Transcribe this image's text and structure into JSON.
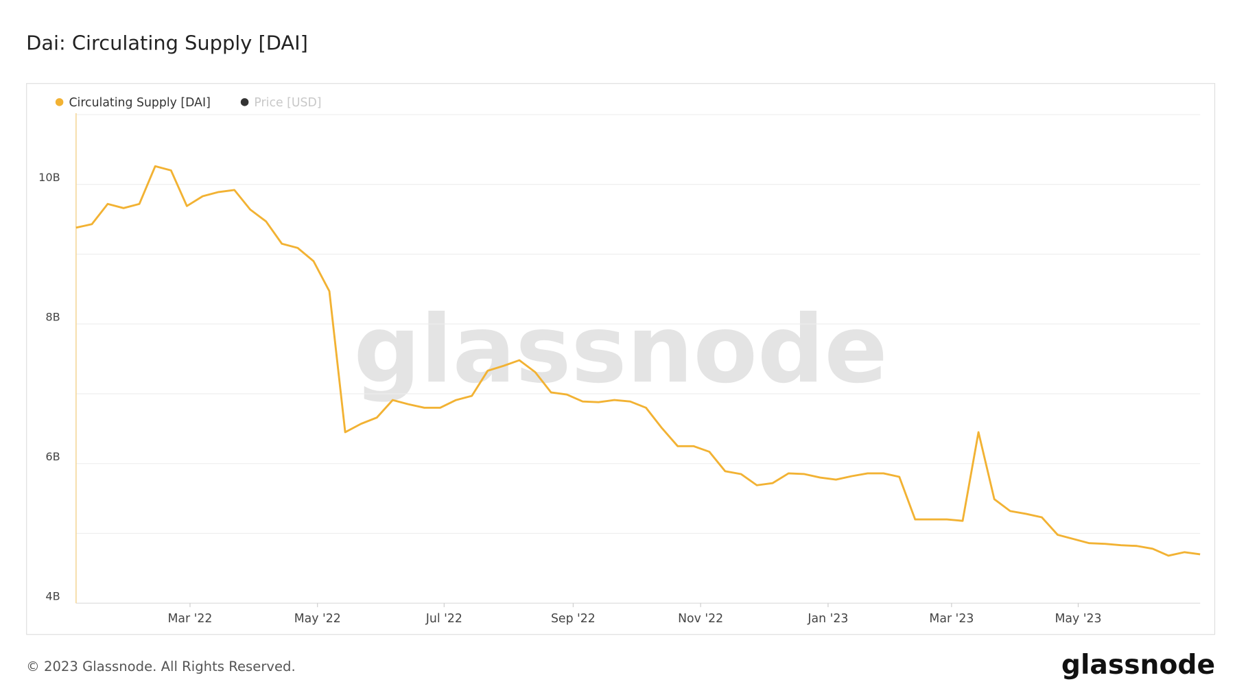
{
  "chart_data": {
    "type": "line",
    "title": "Dai: Circulating Supply [DAI]",
    "series": [
      {
        "name": "Circulating Supply [DAI]",
        "color": "#f2b233",
        "values": [
          9.38,
          9.43,
          9.72,
          9.66,
          9.72,
          10.26,
          10.2,
          9.69,
          9.83,
          9.89,
          9.92,
          9.64,
          9.47,
          9.15,
          9.09,
          8.9,
          8.47,
          6.45,
          6.57,
          6.66,
          6.91,
          6.85,
          6.8,
          6.8,
          6.91,
          6.97,
          7.33,
          7.4,
          7.48,
          7.31,
          7.02,
          6.99,
          6.89,
          6.88,
          6.91,
          6.89,
          6.8,
          6.51,
          6.25,
          6.25,
          6.17,
          5.89,
          5.85,
          5.69,
          5.72,
          5.86,
          5.85,
          5.8,
          5.77,
          5.82,
          5.86,
          5.86,
          5.81,
          5.2,
          5.2,
          5.2,
          5.18,
          6.45,
          5.49,
          5.32,
          5.28,
          5.23,
          4.98,
          4.92,
          4.86,
          4.85,
          4.83,
          4.82,
          4.78,
          4.68,
          4.73,
          4.7
        ]
      },
      {
        "name": "Price [USD]",
        "color": "#333333",
        "hidden": true
      }
    ],
    "xlim": [
      0,
      71
    ],
    "xticks": [
      {
        "value": 7.2,
        "label": "Mar '22"
      },
      {
        "value": 15.25,
        "label": "May '22"
      },
      {
        "value": 23.25,
        "label": "Jul '22"
      },
      {
        "value": 31.4,
        "label": "Sep '22"
      },
      {
        "value": 39.45,
        "label": "Nov '22"
      },
      {
        "value": 47.5,
        "label": "Jan '23"
      },
      {
        "value": 55.3,
        "label": "Mar '23"
      },
      {
        "value": 63.3,
        "label": "May '23"
      }
    ],
    "ylim": [
      4,
      11.02
    ],
    "yticks": [
      {
        "value": 4,
        "label": "4B"
      },
      {
        "value": 5,
        "label": null
      },
      {
        "value": 6,
        "label": "6B"
      },
      {
        "value": 7,
        "label": null
      },
      {
        "value": 8,
        "label": "8B"
      },
      {
        "value": 9,
        "label": null
      },
      {
        "value": 10,
        "label": "10B"
      },
      {
        "value": 11,
        "label": null
      }
    ],
    "grid": true
  },
  "watermark": "glassnode",
  "footer": "© 2023 Glassnode. All Rights Reserved.",
  "logo": "glassnode"
}
